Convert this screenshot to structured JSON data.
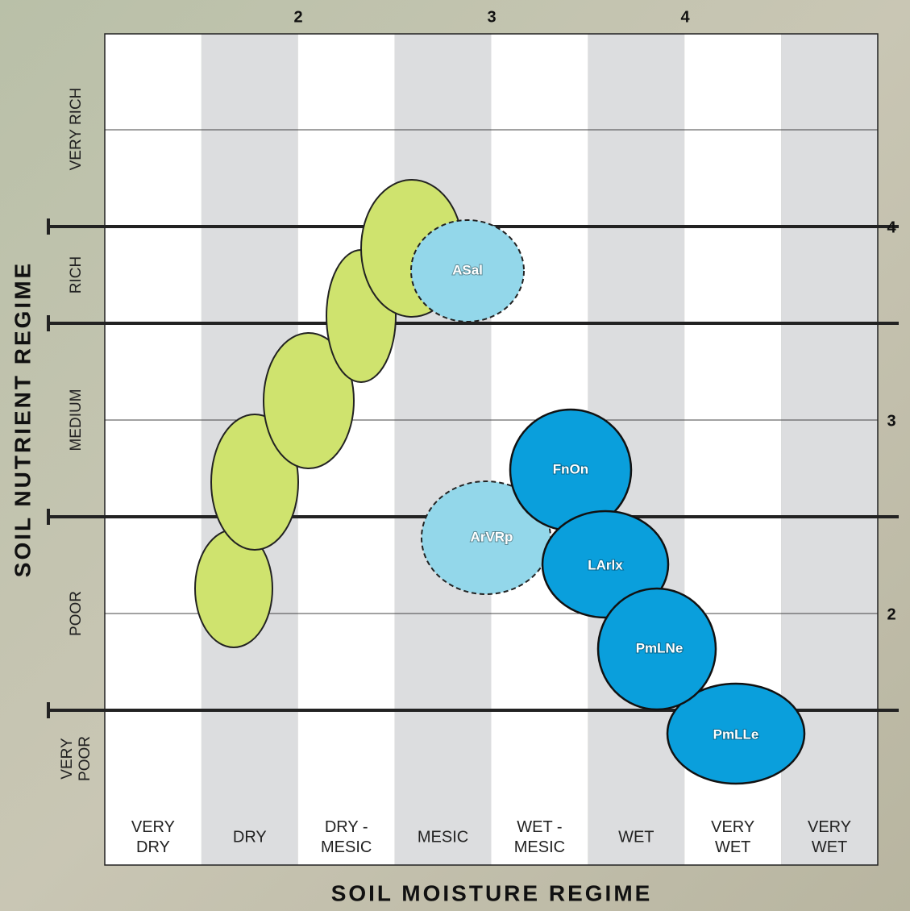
{
  "top_numbers": [
    "2",
    "3",
    "4"
  ],
  "right_numbers": [
    "4",
    "3",
    "2"
  ],
  "y_axis_title": "SOIL NUTRIENT REGIME",
  "x_axis_title": "SOIL MOISTURE REGIME",
  "rows": [
    [
      "VERY RICH"
    ],
    [
      "RICH"
    ],
    [
      "MEDIUM"
    ],
    [
      "POOR"
    ],
    [
      "VERY",
      "POOR"
    ]
  ],
  "columns": [
    [
      "VERY",
      "DRY"
    ],
    [
      "DRY"
    ],
    [
      "DRY -",
      "MESIC"
    ],
    [
      "MESIC"
    ],
    [
      "WET -",
      "MESIC"
    ],
    [
      "WET"
    ],
    [
      "VERY",
      "WET"
    ],
    [
      "VERY",
      "WET"
    ]
  ],
  "units": [
    "ASal",
    "ArVRp",
    "FnOn",
    "LArlx",
    "PmLNe",
    "PmLLe"
  ]
}
